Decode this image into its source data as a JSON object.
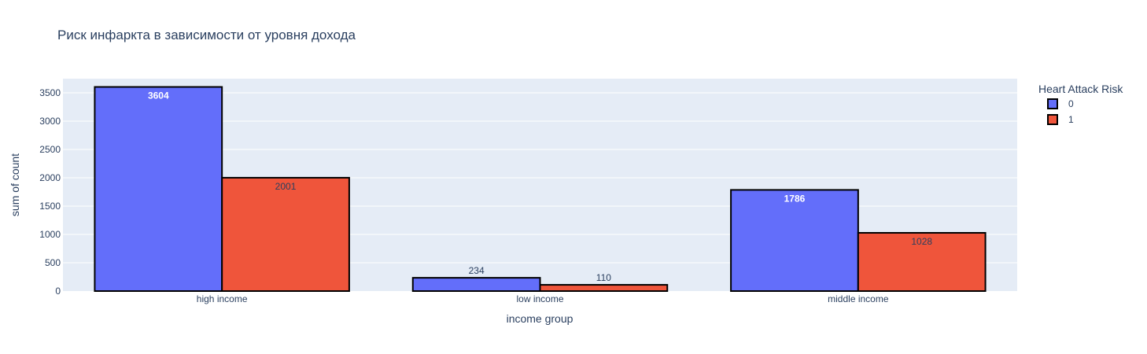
{
  "chart_data": {
    "type": "bar",
    "title": "Риск инфаркта в зависимости от уровня дохода",
    "xlabel": "income group",
    "ylabel": "sum of count",
    "categories": [
      "high income",
      "low income",
      "middle income"
    ],
    "ylim": [
      0,
      3750
    ],
    "yticks": [
      0,
      500,
      1000,
      1500,
      2000,
      2500,
      3000,
      3500
    ],
    "grid": true,
    "legend_title": "Heart Attack Risk",
    "legend_position": "top-right",
    "series": [
      {
        "name": "0",
        "values": [
          3604,
          234,
          1786
        ],
        "color": "#636efa"
      },
      {
        "name": "1",
        "values": [
          2001,
          110,
          1028
        ],
        "color": "#ef553b"
      }
    ],
    "background_color": "#e5ecf6",
    "bar_outline_color": "#000000"
  }
}
